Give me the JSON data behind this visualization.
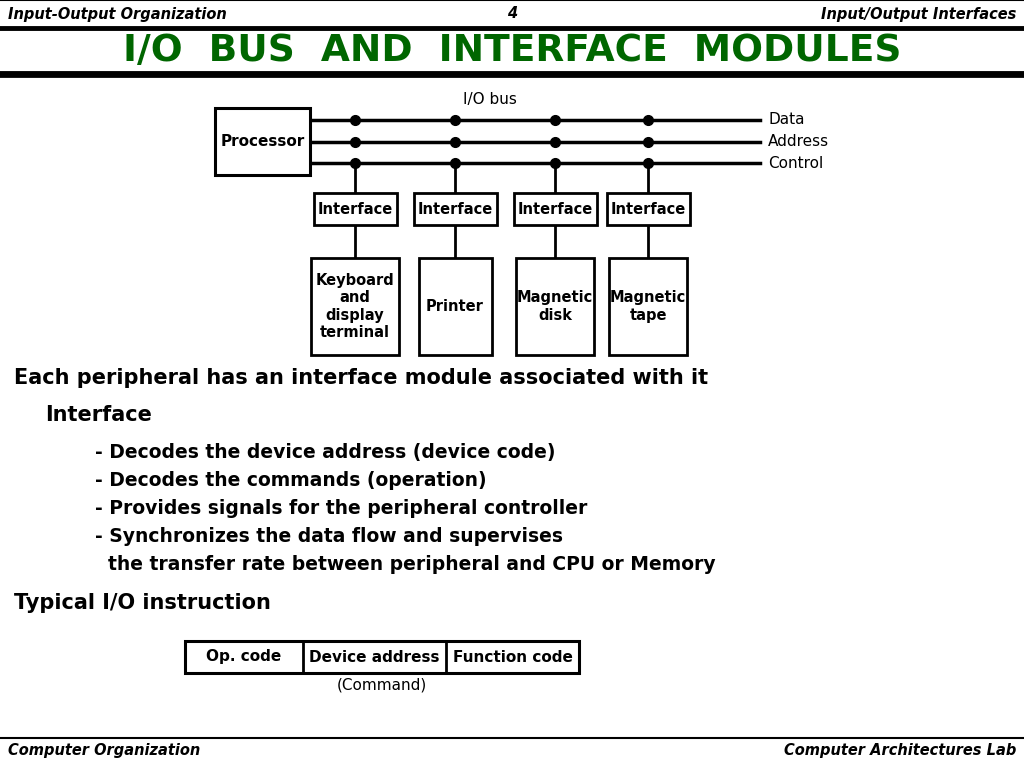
{
  "bg_color": "#ffffff",
  "title_text": "I/O  BUS  AND  INTERFACE  MODULES",
  "title_color": "#006600",
  "header_left": "Input-Output Organization",
  "header_center": "4",
  "header_right": "Input/Output Interfaces",
  "footer_left": "Computer Organization",
  "footer_right": "Computer Architectures Lab",
  "io_bus_label": "I/O bus",
  "data_label": "Data",
  "address_label": "Address",
  "control_label": "Control",
  "processor_label": "Processor",
  "interface_labels": [
    "Interface",
    "Interface",
    "Interface",
    "Interface"
  ],
  "peripheral_labels": [
    "Keyboard\nand\ndisplay\nterminal",
    "Printer",
    "Magnetic\ndisk",
    "Magnetic\ntape"
  ],
  "bullet_lines": [
    "- Decodes the device address (device code)",
    "- Decodes the commands (operation)",
    "- Provides signals for the peripheral controller",
    "- Synchronizes the data flow and supervises",
    "  the transfer rate between peripheral and CPU or Memory"
  ],
  "instruction_cells": [
    "Op. code",
    "Device address",
    "Function code"
  ],
  "instruction_label": "(Command)",
  "line1": "Each peripheral has an interface module associated with it",
  "line2": "Interface",
  "line3": "Typical I/O instruction"
}
